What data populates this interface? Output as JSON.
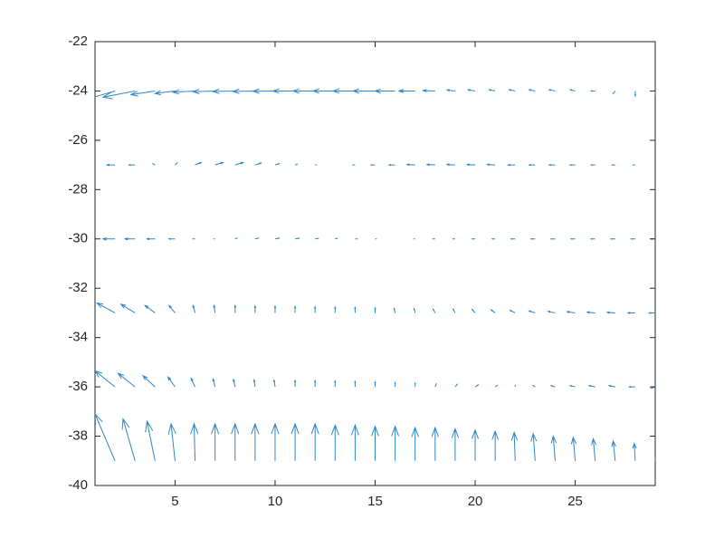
{
  "chart_data": {
    "type": "quiver",
    "color": "#2e86c8",
    "xlim": [
      1,
      29
    ],
    "ylim": [
      -40,
      -22
    ],
    "xticks": [
      5,
      10,
      15,
      20,
      25
    ],
    "yticks": [
      -40,
      -38,
      -36,
      -34,
      -32,
      -30,
      -28,
      -26,
      -24,
      -22
    ],
    "x": [
      1,
      2,
      3,
      4,
      5,
      6,
      7,
      8,
      9,
      10,
      11,
      12,
      13,
      14,
      15,
      16,
      17,
      18,
      19,
      20,
      21,
      22,
      23,
      24,
      25,
      26,
      27,
      28,
      29
    ],
    "series": [
      {
        "y": -24,
        "u": [
          -1.0,
          -1.7,
          -1.6,
          -1.2,
          -1.0,
          -1.1,
          -1.1,
          -1.1,
          -1.1,
          -1.1,
          -1.1,
          -1.1,
          -1.1,
          -1.1,
          -1.1,
          -1.0,
          -0.8,
          -0.6,
          -0.4,
          -0.35,
          -0.3,
          -0.3,
          -0.3,
          -0.3,
          -0.25,
          -0.2,
          -0.1,
          0.0,
          0.0
        ],
        "v": [
          -0.45,
          -0.4,
          -0.25,
          -0.15,
          -0.1,
          -0.05,
          -0.03,
          -0.02,
          -0.02,
          -0.01,
          0.0,
          0.0,
          0.0,
          0.0,
          0.0,
          0.0,
          0.0,
          0.02,
          0.04,
          0.05,
          0.05,
          0.05,
          0.05,
          0.05,
          0.05,
          0.0,
          -0.1,
          -0.2,
          -0.15
        ]
      },
      {
        "y": -27,
        "u": [
          -0.6,
          -0.4,
          -0.3,
          -0.1,
          0.1,
          0.3,
          0.4,
          0.4,
          0.3,
          0.2,
          0.1,
          0.05,
          0.0,
          -0.1,
          -0.2,
          -0.3,
          -0.4,
          -0.4,
          -0.4,
          -0.4,
          -0.4,
          -0.35,
          -0.3,
          -0.3,
          -0.25,
          -0.2,
          -0.15,
          -0.1,
          0.0
        ],
        "v": [
          -0.05,
          0.0,
          0.0,
          0.05,
          0.08,
          0.1,
          0.1,
          0.1,
          0.08,
          0.05,
          0.03,
          0.0,
          0.0,
          0.0,
          0.0,
          0.0,
          0.02,
          0.02,
          0.02,
          0.02,
          0.02,
          0.0,
          0.0,
          0.0,
          0.0,
          0.0,
          0.0,
          0.0,
          0.0
        ]
      },
      {
        "y": -30,
        "u": [
          -0.8,
          -0.6,
          -0.5,
          -0.4,
          -0.3,
          -0.1,
          -0.05,
          0.1,
          0.15,
          0.2,
          0.2,
          0.15,
          0.1,
          0.1,
          0.05,
          0.0,
          -0.05,
          -0.1,
          -0.1,
          -0.15,
          -0.15,
          -0.2,
          -0.2,
          -0.2,
          -0.2,
          -0.2,
          -0.2,
          -0.2,
          -0.2
        ],
        "v": [
          -0.05,
          0.0,
          0.0,
          0.0,
          0.0,
          0.0,
          0.0,
          0.03,
          0.03,
          0.03,
          0.03,
          0.02,
          0.02,
          0.0,
          0.0,
          0.0,
          0.0,
          0.0,
          0.0,
          0.0,
          0.0,
          0.0,
          0.0,
          0.0,
          0.0,
          0.0,
          0.0,
          0.0,
          0.0
        ]
      },
      {
        "y": -33,
        "u": [
          -1.0,
          -0.9,
          -0.7,
          -0.5,
          -0.3,
          -0.1,
          -0.05,
          0.0,
          0.0,
          0.0,
          0.0,
          0.0,
          0.0,
          0.0,
          0.0,
          -0.05,
          -0.05,
          -0.1,
          -0.1,
          -0.15,
          -0.2,
          -0.25,
          -0.3,
          -0.35,
          -0.4,
          -0.4,
          -0.4,
          -0.35,
          -0.3
        ],
        "v": [
          0.5,
          0.4,
          0.35,
          0.3,
          0.3,
          0.3,
          0.3,
          0.3,
          0.28,
          0.27,
          0.26,
          0.25,
          0.24,
          0.22,
          0.2,
          0.18,
          0.17,
          0.15,
          0.15,
          0.14,
          0.12,
          0.1,
          0.08,
          0.06,
          0.05,
          0.03,
          0.02,
          0.0,
          0.0
        ]
      },
      {
        "y": -36,
        "u": [
          -1.1,
          -1.0,
          -0.85,
          -0.6,
          -0.35,
          -0.2,
          -0.1,
          -0.08,
          -0.05,
          -0.05,
          0.0,
          0.0,
          0.0,
          0.0,
          0.0,
          0.0,
          0.0,
          0.05,
          0.1,
          0.15,
          0.1,
          0.0,
          -0.1,
          -0.2,
          -0.25,
          -0.3,
          -0.3,
          -0.3,
          -0.2
        ],
        "v": [
          0.75,
          0.65,
          0.55,
          0.45,
          0.4,
          0.35,
          0.32,
          0.3,
          0.28,
          0.27,
          0.26,
          0.25,
          0.24,
          0.22,
          0.2,
          0.18,
          0.15,
          0.12,
          0.1,
          0.08,
          0.06,
          0.05,
          0.05,
          0.05,
          0.05,
          0.05,
          0.05,
          0.0,
          -0.05
        ]
      },
      {
        "y": -39,
        "u": [
          -1.2,
          -1.0,
          -0.6,
          -0.4,
          -0.2,
          -0.05,
          0.0,
          0.0,
          0.0,
          0.0,
          0.0,
          0.0,
          0.0,
          0.0,
          0.0,
          0.0,
          0.0,
          0.0,
          0.0,
          0.0,
          0.0,
          -0.05,
          -0.1,
          -0.1,
          -0.1,
          -0.1,
          -0.1,
          -0.05,
          0.05
        ],
        "v": [
          2.0,
          1.9,
          1.7,
          1.6,
          1.5,
          1.5,
          1.5,
          1.5,
          1.5,
          1.5,
          1.5,
          1.5,
          1.45,
          1.45,
          1.4,
          1.4,
          1.35,
          1.35,
          1.3,
          1.25,
          1.2,
          1.15,
          1.1,
          1.0,
          0.95,
          0.9,
          0.8,
          0.7,
          0.5
        ]
      }
    ]
  }
}
